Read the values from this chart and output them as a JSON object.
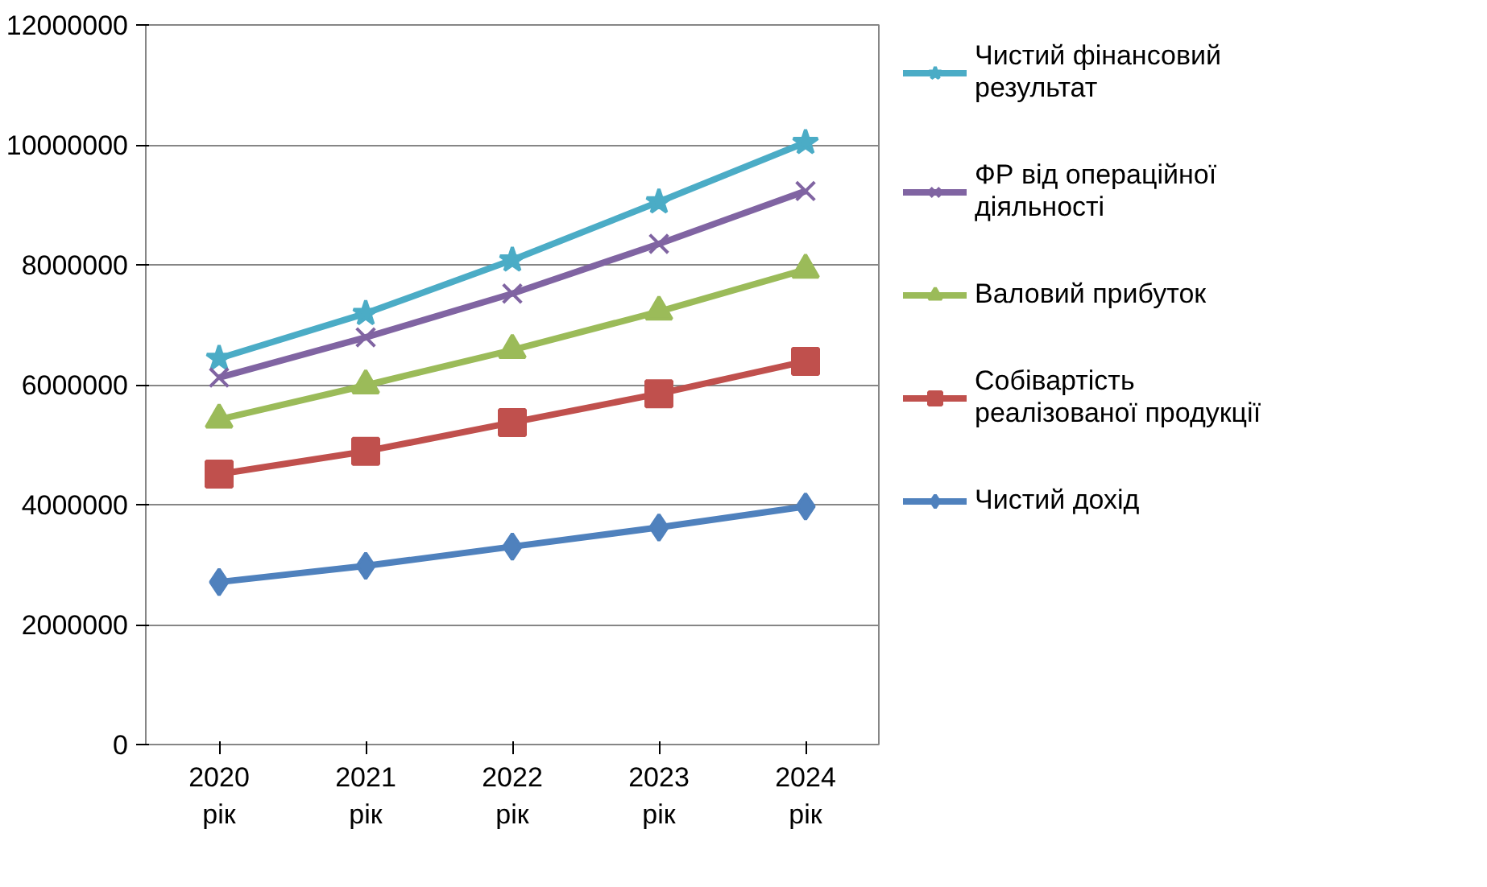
{
  "chart_data": {
    "type": "line",
    "categories": [
      "2020 рік",
      "2021 рік",
      "2022 рік",
      "2023 рік",
      "2024 рік"
    ],
    "series": [
      {
        "name": "Чистий фінансовий результат",
        "color": "#4bacc6",
        "marker": "star",
        "values": [
          6440000,
          7190000,
          8080000,
          9050000,
          10040000
        ]
      },
      {
        "name": "ФР від операційної діяльності",
        "color": "#8064a2",
        "marker": "cross",
        "values": [
          6120000,
          6790000,
          7520000,
          8350000,
          9230000
        ]
      },
      {
        "name": "Валовий прибуток",
        "color": "#9bbb59",
        "marker": "triangle",
        "values": [
          5420000,
          5990000,
          6580000,
          7220000,
          7920000
        ]
      },
      {
        "name": "Собівартість реалізованої продукції",
        "color": "#c0504d",
        "marker": "square",
        "values": [
          4510000,
          4890000,
          5370000,
          5850000,
          6390000
        ]
      },
      {
        "name": "Чистий дохід",
        "color": "#4f81bd",
        "marker": "diamond",
        "values": [
          2710000,
          2980000,
          3300000,
          3620000,
          3970000
        ]
      }
    ],
    "ylim": [
      0,
      12000000
    ],
    "yticks": [
      0,
      2000000,
      4000000,
      6000000,
      8000000,
      10000000,
      12000000
    ],
    "grid": "y",
    "legend": "right",
    "line_style": "solid"
  }
}
